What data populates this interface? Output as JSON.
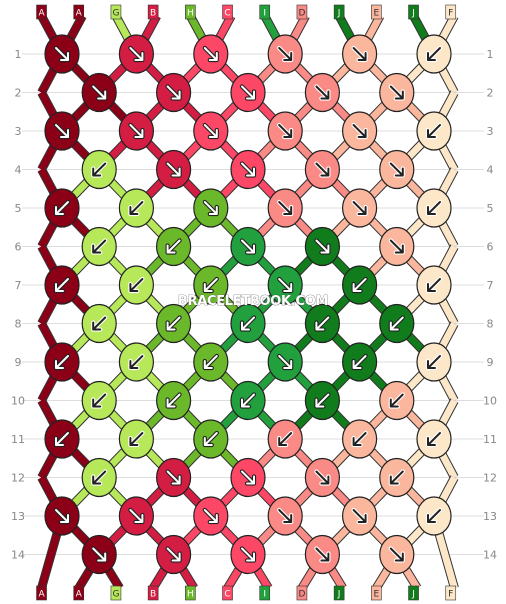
{
  "pattern": {
    "watermark": "BRACELETBOOK.COM",
    "strands": [
      "A",
      "A",
      "G",
      "B",
      "H",
      "C",
      "I",
      "D",
      "J",
      "E",
      "J",
      "F"
    ],
    "colors": {
      "A": "#8b0016",
      "B": "#d41d42",
      "C": "#fc4766",
      "D": "#fa8a86",
      "E": "#fbb69e",
      "F": "#fce7c9",
      "G": "#b6e85a",
      "H": "#6cb82b",
      "I": "#22a03d",
      "J": "#117c1c"
    },
    "rows": [
      "1",
      "2",
      "3",
      "4",
      "5",
      "6",
      "7",
      "8",
      "9",
      "10",
      "11",
      "12",
      "13",
      "14"
    ],
    "knots": [
      [
        "A",
        "B",
        "C",
        "D",
        "E",
        "F"
      ],
      [
        "A",
        "B",
        "C",
        "D",
        "E"
      ],
      [
        "A",
        "B",
        "C",
        "D",
        "E",
        "F"
      ],
      [
        "G",
        "B",
        "C",
        "D",
        "E"
      ],
      [
        "A",
        "G",
        "H",
        "D",
        "E",
        "F"
      ],
      [
        "G",
        "H",
        "I",
        "J",
        "E"
      ],
      [
        "A",
        "G",
        "H",
        "I",
        "J",
        "F"
      ],
      [
        "G",
        "H",
        "I",
        "J",
        "J"
      ],
      [
        "A",
        "G",
        "H",
        "I",
        "J",
        "F"
      ],
      [
        "G",
        "H",
        "I",
        "J",
        "E"
      ],
      [
        "A",
        "G",
        "H",
        "D",
        "E",
        "F"
      ],
      [
        "G",
        "B",
        "C",
        "D",
        "E"
      ],
      [
        "A",
        "B",
        "C",
        "D",
        "E",
        "F"
      ],
      [
        "A",
        "B",
        "C",
        "D",
        "E"
      ]
    ],
    "arrows": [
      [
        "se",
        "se",
        "se",
        "se",
        "se",
        "sw"
      ],
      [
        "se",
        "se",
        "se",
        "se",
        "se"
      ],
      [
        "se",
        "se",
        "se",
        "se",
        "se",
        "sw"
      ],
      [
        "sw",
        "se",
        "se",
        "se",
        "se"
      ],
      [
        "sw",
        "sw",
        "se",
        "se",
        "se",
        "sw"
      ],
      [
        "sw",
        "sw",
        "se",
        "se",
        "se"
      ],
      [
        "sw",
        "sw",
        "sw",
        "se",
        "sw",
        "sw"
      ],
      [
        "sw",
        "sw",
        "sw",
        "sw",
        "sw"
      ],
      [
        "sw",
        "sw",
        "sw",
        "se",
        "sw",
        "sw"
      ],
      [
        "sw",
        "sw",
        "sw",
        "sw",
        "sw"
      ],
      [
        "sw",
        "sw",
        "sw",
        "sw",
        "sw",
        "sw"
      ],
      [
        "sw",
        "se",
        "se",
        "se",
        "sw"
      ],
      [
        "se",
        "se",
        "se",
        "se",
        "se",
        "sw"
      ],
      [
        "se",
        "se",
        "se",
        "se",
        "se"
      ]
    ]
  }
}
